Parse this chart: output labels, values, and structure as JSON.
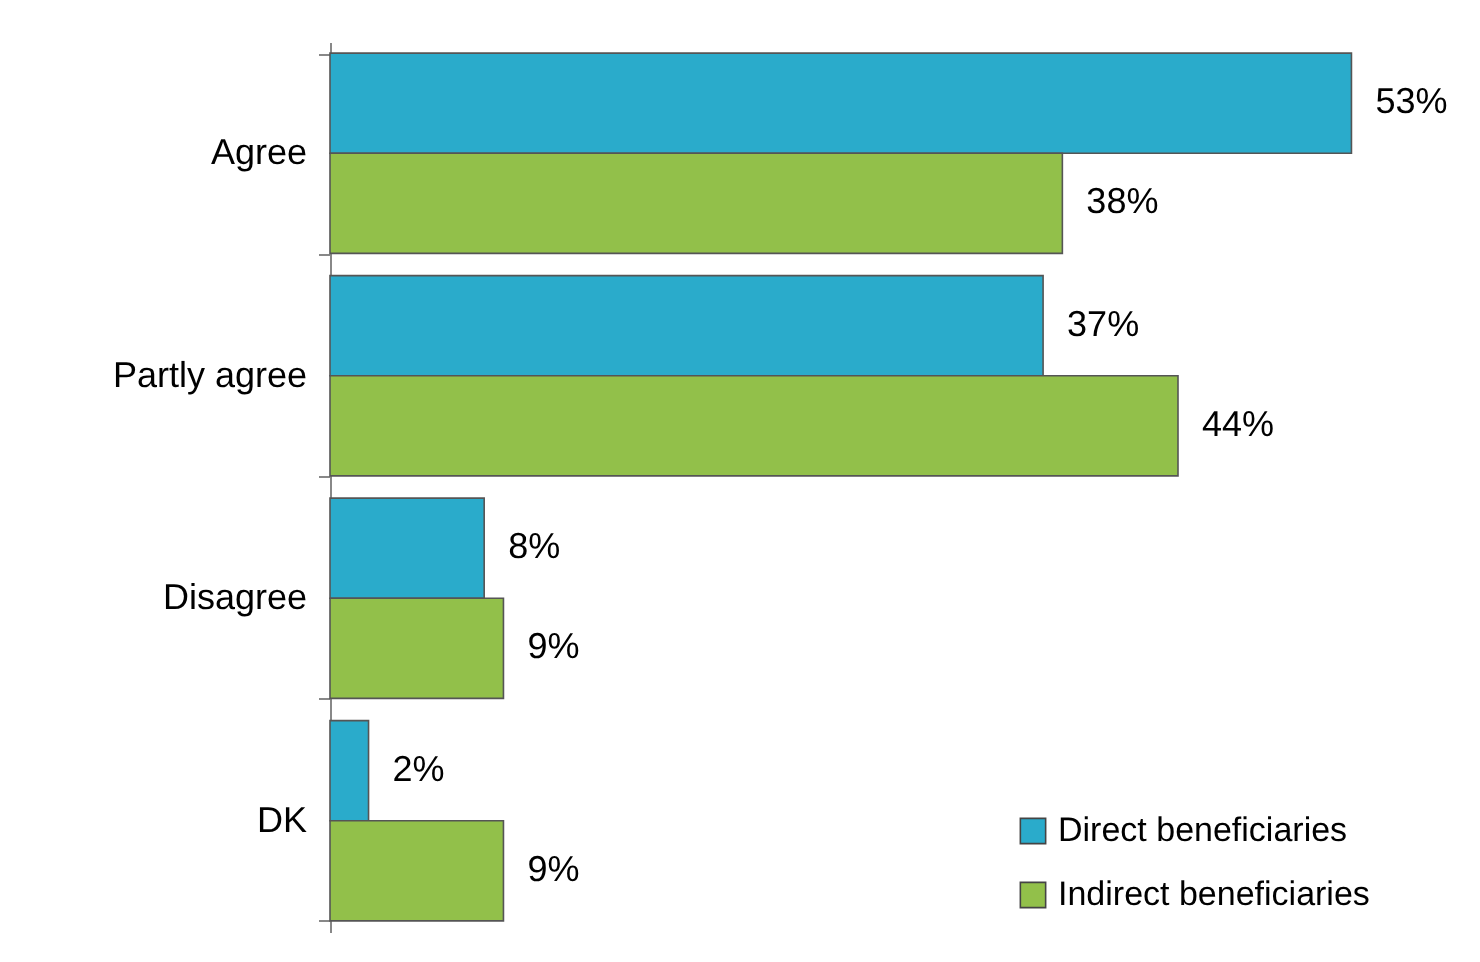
{
  "chart_data": {
    "type": "bar",
    "orientation": "horizontal",
    "categories": [
      "Agree",
      "Partly agree",
      "Disagree",
      "DK"
    ],
    "series": [
      {
        "name": "Direct beneficiaries",
        "color": "#2aabcb",
        "values": [
          53,
          37,
          8,
          2
        ],
        "value_labels": [
          "53%",
          "37%",
          "8%",
          "2%"
        ]
      },
      {
        "name": "Indirect beneficiaries",
        "color": "#92c04a",
        "values": [
          38,
          44,
          9,
          9
        ],
        "value_labels": [
          "38%",
          "44%",
          "9%",
          "9%"
        ]
      }
    ],
    "legend": "bottom right"
  }
}
